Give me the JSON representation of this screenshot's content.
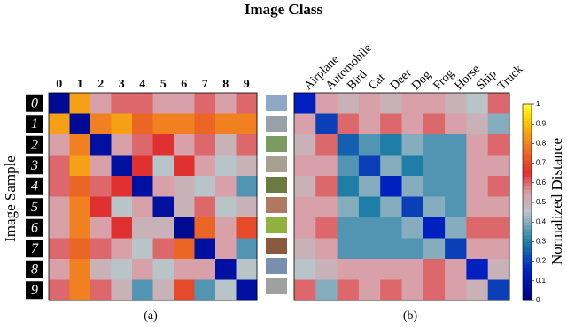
{
  "title": "Image Class",
  "y_label": "Image Sample",
  "panels": [
    {
      "label": "(a)",
      "column_labels": [
        "0",
        "1",
        "2",
        "3",
        "4",
        "5",
        "6",
        "7",
        "8",
        "9"
      ],
      "row_labels": [
        "0",
        "1",
        "2",
        "3",
        "4",
        "5",
        "6",
        "7",
        "8",
        "9"
      ],
      "matrix": [
        [
          0.05,
          0.85,
          0.55,
          0.6,
          0.6,
          0.55,
          0.55,
          0.6,
          0.55,
          0.6
        ],
        [
          0.85,
          0.05,
          0.8,
          0.85,
          0.75,
          0.8,
          0.8,
          0.75,
          0.8,
          0.8
        ],
        [
          0.55,
          0.8,
          0.08,
          0.55,
          0.6,
          0.65,
          0.55,
          0.6,
          0.5,
          0.6
        ],
        [
          0.6,
          0.85,
          0.55,
          0.08,
          0.65,
          0.45,
          0.65,
          0.55,
          0.45,
          0.5
        ],
        [
          0.6,
          0.75,
          0.6,
          0.65,
          0.08,
          0.55,
          0.5,
          0.45,
          0.55,
          0.35
        ],
        [
          0.55,
          0.8,
          0.65,
          0.45,
          0.55,
          0.08,
          0.5,
          0.6,
          0.45,
          0.5
        ],
        [
          0.55,
          0.8,
          0.55,
          0.65,
          0.5,
          0.5,
          0.05,
          0.75,
          0.55,
          0.7
        ],
        [
          0.6,
          0.75,
          0.6,
          0.55,
          0.45,
          0.6,
          0.75,
          0.08,
          0.55,
          0.35
        ],
        [
          0.55,
          0.8,
          0.5,
          0.45,
          0.55,
          0.45,
          0.55,
          0.55,
          0.08,
          0.45
        ],
        [
          0.6,
          0.8,
          0.6,
          0.5,
          0.35,
          0.5,
          0.7,
          0.35,
          0.45,
          0.08
        ]
      ]
    },
    {
      "label": "(b)",
      "column_labels": [
        "Airplane",
        "Automobile",
        "Bird",
        "Cat",
        "Deer",
        "Dog",
        "Frog",
        "Horse",
        "Ship",
        "Truck"
      ],
      "matrix": [
        [
          0.15,
          0.55,
          0.5,
          0.55,
          0.5,
          0.55,
          0.55,
          0.5,
          0.45,
          0.6
        ],
        [
          0.55,
          0.2,
          0.6,
          0.55,
          0.6,
          0.55,
          0.6,
          0.55,
          0.5,
          0.4
        ],
        [
          0.5,
          0.6,
          0.25,
          0.35,
          0.3,
          0.4,
          0.35,
          0.35,
          0.55,
          0.6
        ],
        [
          0.55,
          0.55,
          0.35,
          0.2,
          0.4,
          0.3,
          0.35,
          0.35,
          0.55,
          0.55
        ],
        [
          0.5,
          0.6,
          0.3,
          0.4,
          0.15,
          0.4,
          0.35,
          0.35,
          0.55,
          0.6
        ],
        [
          0.55,
          0.55,
          0.4,
          0.3,
          0.4,
          0.2,
          0.4,
          0.35,
          0.55,
          0.55
        ],
        [
          0.55,
          0.6,
          0.35,
          0.35,
          0.35,
          0.4,
          0.15,
          0.4,
          0.6,
          0.6
        ],
        [
          0.5,
          0.55,
          0.35,
          0.35,
          0.35,
          0.35,
          0.4,
          0.2,
          0.55,
          0.55
        ],
        [
          0.45,
          0.5,
          0.55,
          0.55,
          0.55,
          0.55,
          0.6,
          0.55,
          0.15,
          0.5
        ],
        [
          0.6,
          0.4,
          0.6,
          0.55,
          0.6,
          0.55,
          0.6,
          0.55,
          0.5,
          0.2
        ]
      ]
    }
  ],
  "colorbar": {
    "label": "Normalized Distance",
    "lim": [
      0,
      1
    ],
    "ticks": [
      0,
      0.1,
      0.2,
      0.3,
      0.4,
      0.5,
      0.6,
      0.7,
      0.8,
      0.9,
      1
    ]
  }
}
